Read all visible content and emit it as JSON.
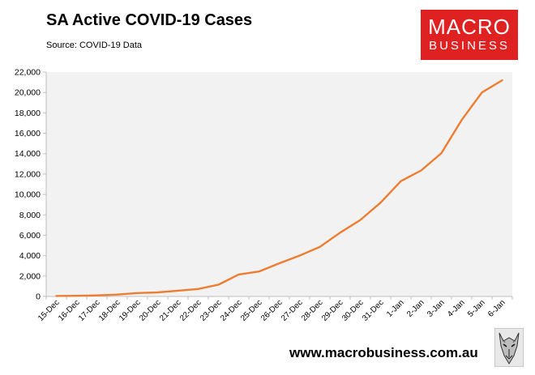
{
  "header": {
    "title": "SA Active COVID-19 Cases",
    "source": "Source: COVID-19 Data"
  },
  "logo": {
    "line1": "MACRO",
    "line2": "BUSINESS",
    "color": "#e02121"
  },
  "footer": {
    "url": "www.macrobusiness.com.au",
    "icon": "wolf-icon"
  },
  "chart_data": {
    "type": "line",
    "title": "SA Active COVID-19 Cases",
    "xlabel": "",
    "ylabel": "",
    "ylim": [
      0,
      22000
    ],
    "ytick_step": 2000,
    "grid": false,
    "legend": "none",
    "categories": [
      "15-Dec",
      "16-Dec",
      "17-Dec",
      "18-Dec",
      "19-Dec",
      "20-Dec",
      "21-Dec",
      "22-Dec",
      "23-Dec",
      "24-Dec",
      "25-Dec",
      "26-Dec",
      "27-Dec",
      "28-Dec",
      "29-Dec",
      "30-Dec",
      "31-Dec",
      "1-Jan",
      "2-Jan",
      "3-Jan",
      "4-Jan",
      "5-Jan",
      "6-Jan"
    ],
    "yticks": [
      "0",
      "2,000",
      "4,000",
      "6,000",
      "8,000",
      "10,000",
      "12,000",
      "14,000",
      "16,000",
      "18,000",
      "20,000",
      "22,000"
    ],
    "series": [
      {
        "name": "SA Active COVID-19 Cases",
        "color": "#ed7d31",
        "values": [
          50,
          60,
          100,
          180,
          330,
          400,
          560,
          730,
          1150,
          2150,
          2450,
          3250,
          4000,
          4850,
          6250,
          7500,
          9200,
          11300,
          12350,
          14050,
          17300,
          20000,
          21200
        ]
      }
    ]
  }
}
